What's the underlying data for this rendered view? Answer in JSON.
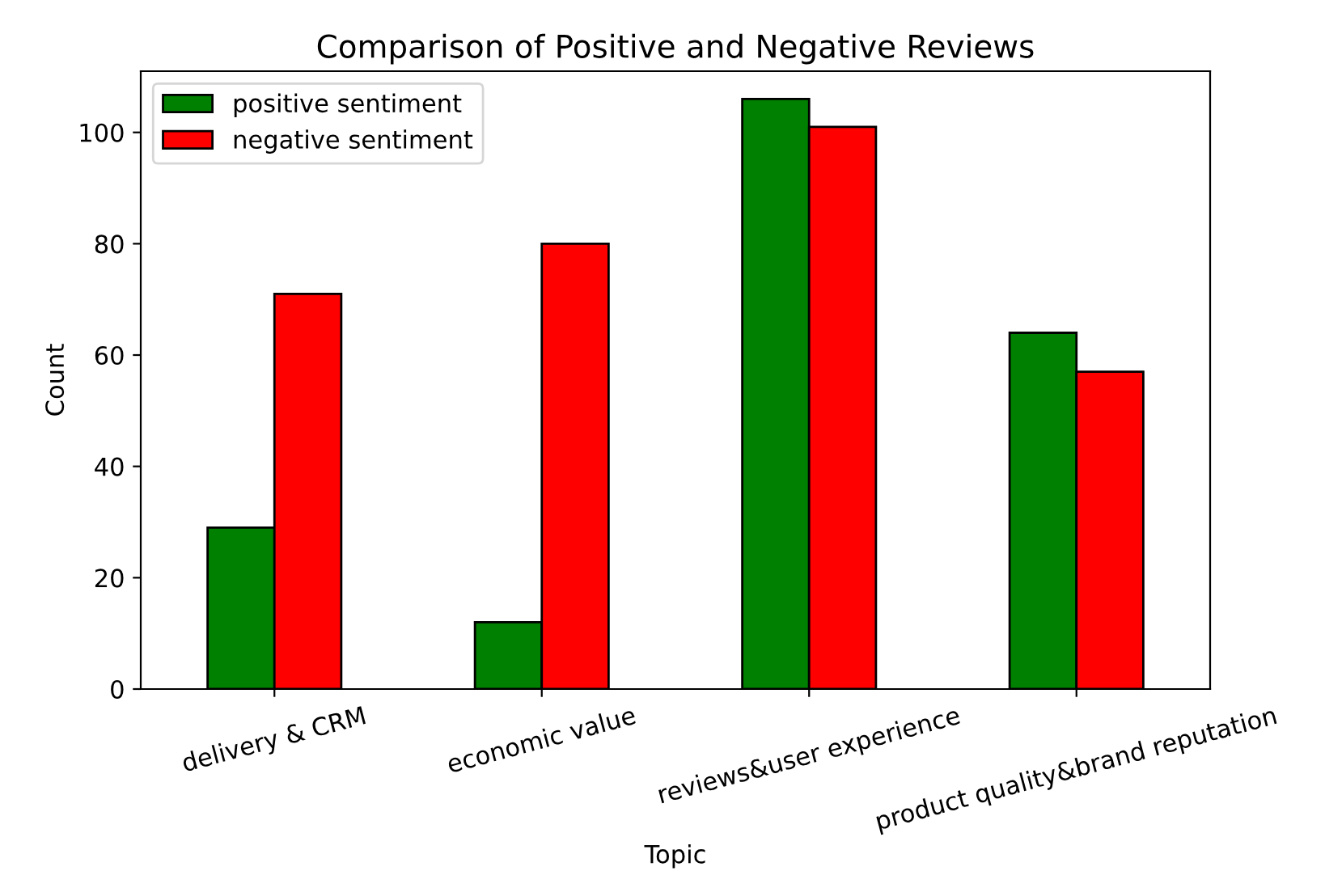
{
  "chart_data": {
    "type": "bar",
    "title": "Comparison of Positive and Negative Reviews",
    "xlabel": "Topic",
    "ylabel": "Count",
    "categories": [
      "delivery & CRM",
      "economic value",
      "reviews&user experience",
      "product quality&brand reputation"
    ],
    "series": [
      {
        "name": "positive sentiment",
        "color": "#008000",
        "values": [
          29,
          12,
          106,
          64
        ]
      },
      {
        "name": "negative sentiment",
        "color": "#ff0000",
        "values": [
          71,
          80,
          101,
          57
        ]
      }
    ],
    "ylim": [
      0,
      111
    ],
    "yticks": [
      0,
      20,
      40,
      60,
      80,
      100
    ],
    "grid": false,
    "legend": "top left"
  }
}
